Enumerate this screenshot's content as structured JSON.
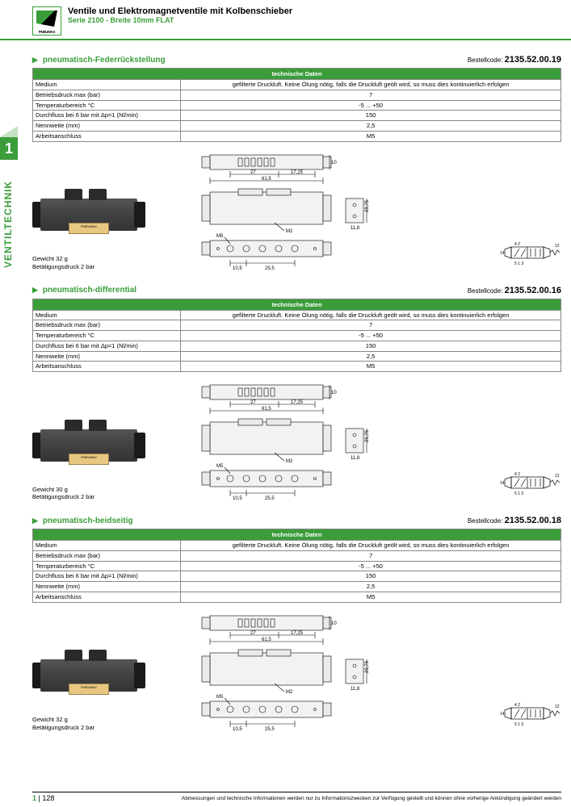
{
  "header": {
    "title": "Ventile und Elektromagnetventile mit Kolbenschieber",
    "subtitle": "Serie 2100 - Breite 10mm FLAT",
    "logo_text": "PNEUMAX"
  },
  "side": {
    "number": "1",
    "label": "VENTILTECHNIK"
  },
  "ordercode_label": "Bestellcode:",
  "spec_header": "technische Daten",
  "spec_rows": [
    {
      "k": "Medium",
      "v": "gefilterte Druckluft. Keine Ölung nötig, falls die Druckluft geölt wird, so muss dies kontinuierlich erfolgen"
    },
    {
      "k": "Betriebsdruck max (bar)",
      "v": "7"
    },
    {
      "k": "Temperaturbereich °C",
      "v": "-5 ... +50"
    },
    {
      "k": "Durchfluss bei 6 bar mit Δp=1 (Nl/min)",
      "v": "150"
    },
    {
      "k": "Nennweite (mm)",
      "v": "2,5"
    },
    {
      "k": "Arbeitsanschluss",
      "v": "M5"
    }
  ],
  "sections": [
    {
      "title": "pneumatisch-Federrückstellung",
      "code": "2135.52.00.19",
      "weight": "Gewicht 32 g",
      "press": "Betätigungsdruck 2 bar"
    },
    {
      "title": "pneumatisch-differential",
      "code": "2135.52.00.16",
      "weight": "Gewicht 30 g",
      "press": "Betätigungsdruck 2 bar"
    },
    {
      "title": "pneumatisch-beidseitig",
      "code": "2135.52.00.18",
      "weight": "Gewicht 32 g",
      "press": "Betätigungsdruck 2 bar"
    }
  ],
  "dims": {
    "top_a": "27",
    "top_b": "17,25",
    "top_total": "61,5",
    "side_h": "29,75",
    "side_bolt": "M2",
    "side_w": "11,8",
    "bot_m5": "M5",
    "bot_a": "10,5",
    "bot_b": "25,5",
    "sym_l": "14",
    "sym_r": "12",
    "sym_s": "5 1 3",
    "sym_t": "4   2"
  },
  "footer": {
    "chapter": "1",
    "page": "128",
    "disclaimer": "Abmessungen und technische Informationen werden nur zu Informationszwecken zur Verfügung gestellt und können ohne vorherige Ankündigung geändert werden"
  },
  "colors": {
    "brand": "#3a9d3a"
  }
}
